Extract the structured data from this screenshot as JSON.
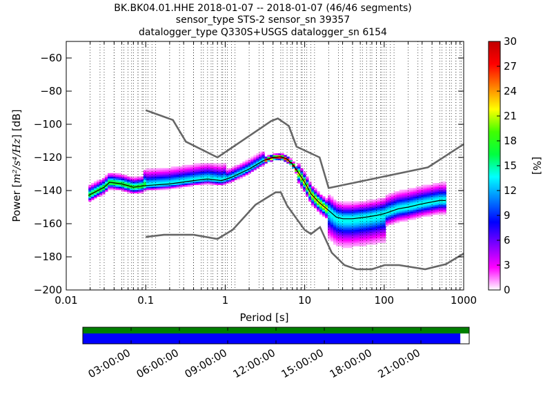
{
  "chart_data": {
    "type": "heatmap",
    "title_lines": [
      "BK.BK04.01.HHE   2018-01-07 -- 2018-01-07  (46/46 segments)",
      "sensor_type STS-2 sensor_sn 39357",
      "datalogger_type Q330S+USGS datalogger_sn 6154"
    ],
    "xlabel": "Period [s]",
    "ylabel_prefix": "Power [",
    "ylabel_units": "m²/s⁴/Hz",
    "ylabel_suffix": "] [dB]",
    "x_scale": "log",
    "xlim": [
      0.01,
      1000
    ],
    "ylim": [
      -200,
      -50
    ],
    "x_ticks": [
      {
        "value": 0.01,
        "label": "0.01"
      },
      {
        "value": 0.1,
        "label": "0.1"
      },
      {
        "value": 1,
        "label": "1"
      },
      {
        "value": 10,
        "label": "10"
      },
      {
        "value": 100,
        "label": "100"
      },
      {
        "value": 1000,
        "label": "1000"
      }
    ],
    "y_ticks": [
      {
        "value": -60,
        "label": "−60"
      },
      {
        "value": -80,
        "label": "−80"
      },
      {
        "value": -100,
        "label": "−100"
      },
      {
        "value": -120,
        "label": "−120"
      },
      {
        "value": -140,
        "label": "−140"
      },
      {
        "value": -160,
        "label": "−160"
      },
      {
        "value": -180,
        "label": "−180"
      },
      {
        "value": -200,
        "label": "−200"
      }
    ],
    "grid": "dotted vertical at period decades",
    "noise_model_high": [
      [
        0.1,
        -91.5
      ],
      [
        0.22,
        -97.4
      ],
      [
        0.32,
        -110.5
      ],
      [
        0.8,
        -120
      ],
      [
        3.8,
        -98
      ],
      [
        4.6,
        -96.5
      ],
      [
        6.3,
        -101
      ],
      [
        7.9,
        -113.5
      ],
      [
        15.4,
        -120
      ],
      [
        20,
        -138.5
      ],
      [
        354.8,
        -126
      ],
      [
        1000,
        -112
      ]
    ],
    "noise_model_low": [
      [
        0.1,
        -168
      ],
      [
        0.17,
        -166.7
      ],
      [
        0.4,
        -166.7
      ],
      [
        0.8,
        -169.2
      ],
      [
        1.24,
        -163.7
      ],
      [
        2.4,
        -148.6
      ],
      [
        4.3,
        -141.1
      ],
      [
        5,
        -141.1
      ],
      [
        6,
        -149
      ],
      [
        10,
        -163.8
      ],
      [
        12,
        -166.2
      ],
      [
        15.6,
        -162.1
      ],
      [
        21.9,
        -177.5
      ],
      [
        31.6,
        -185
      ],
      [
        45,
        -187.5
      ],
      [
        70,
        -187.5
      ],
      [
        101,
        -185
      ],
      [
        154,
        -185
      ],
      [
        328,
        -187.5
      ],
      [
        600,
        -184.4
      ],
      [
        1000,
        -178
      ]
    ],
    "median_curve": [
      [
        0.019,
        -143
      ],
      [
        0.025,
        -140
      ],
      [
        0.03,
        -138
      ],
      [
        0.035,
        -135
      ],
      [
        0.05,
        -136
      ],
      [
        0.07,
        -138
      ],
      [
        0.1,
        -137
      ],
      [
        0.2,
        -136
      ],
      [
        0.4,
        -134
      ],
      [
        0.6,
        -133
      ],
      [
        0.9,
        -134
      ],
      [
        1.2,
        -132
      ],
      [
        2,
        -127
      ],
      [
        3,
        -122
      ],
      [
        4,
        -120
      ],
      [
        5,
        -119.5
      ],
      [
        6,
        -121
      ],
      [
        7,
        -124
      ],
      [
        8,
        -128
      ],
      [
        10,
        -135
      ],
      [
        12,
        -142
      ],
      [
        15,
        -147
      ],
      [
        20,
        -152
      ],
      [
        25,
        -156
      ],
      [
        30,
        -157
      ],
      [
        40,
        -157
      ],
      [
        60,
        -156
      ],
      [
        80,
        -155
      ],
      [
        100,
        -154
      ],
      [
        150,
        -151
      ],
      [
        200,
        -150
      ],
      [
        300,
        -148
      ],
      [
        500,
        -146
      ],
      [
        600,
        -146
      ]
    ],
    "colorbar": {
      "label": "[%]",
      "range": [
        0,
        30
      ],
      "ticks": [
        "0",
        "3",
        "6",
        "9",
        "12",
        "15",
        "18",
        "21",
        "24",
        "27",
        "30"
      ],
      "colormap": [
        "#ffffff",
        "#ff00ff",
        "#8000ff",
        "#0000ff",
        "#0080ff",
        "#00ffff",
        "#00ff40",
        "#40ff00",
        "#ffff00",
        "#ff8000",
        "#ff0000",
        "#c00000"
      ]
    },
    "coverage": {
      "ticks": [
        "03:00:00",
        "06:00:00",
        "09:00:00",
        "12:00:00",
        "15:00:00",
        "18:00:00",
        "21:00:00"
      ],
      "top_bar_color": "#008000",
      "bottom_bar_color": "#0000ff",
      "bottom_bar_fraction": 0.977
    }
  }
}
